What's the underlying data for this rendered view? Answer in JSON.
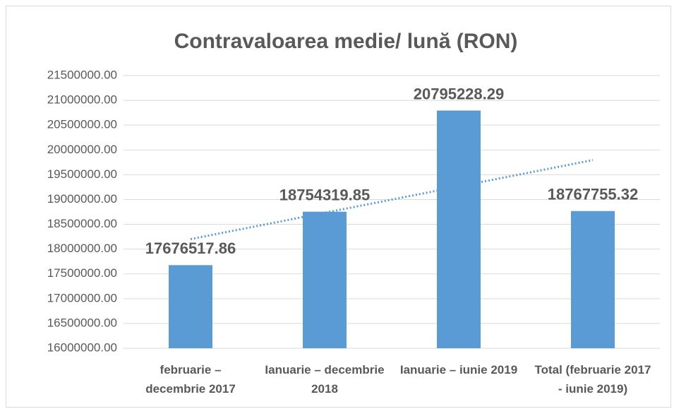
{
  "chart_data": {
    "type": "bar",
    "title": "Contravaloarea medie/ lună (RON)",
    "categories": [
      "februarie – decembrie 2017",
      "Ianuarie – decembrie 2018",
      "Ianuarie – iunie 2019",
      "Total (februarie 2017 - iunie 2019)"
    ],
    "values": [
      17676517.86,
      18754319.85,
      20795228.29,
      18767755.32
    ],
    "color": "#5b9bd5",
    "ylim": [
      16000000,
      21500000
    ],
    "yticks": [
      {
        "value": 16000000,
        "label": "16000000.00"
      },
      {
        "value": 16500000,
        "label": "16500000.00"
      },
      {
        "value": 17000000,
        "label": "17000000.00"
      },
      {
        "value": 17500000,
        "label": "17500000.00"
      },
      {
        "value": 18000000,
        "label": "18000000.00"
      },
      {
        "value": 18500000,
        "label": "18500000.00"
      },
      {
        "value": 19000000,
        "label": "19000000.00"
      },
      {
        "value": 19500000,
        "label": "19500000.00"
      },
      {
        "value": 20000000,
        "label": "20000000.00"
      },
      {
        "value": 20500000,
        "label": "20500000.00"
      },
      {
        "value": 21000000,
        "label": "21000000.00"
      },
      {
        "value": 21500000,
        "label": "21500000.00"
      }
    ],
    "grid": true,
    "trendline": "linear"
  }
}
